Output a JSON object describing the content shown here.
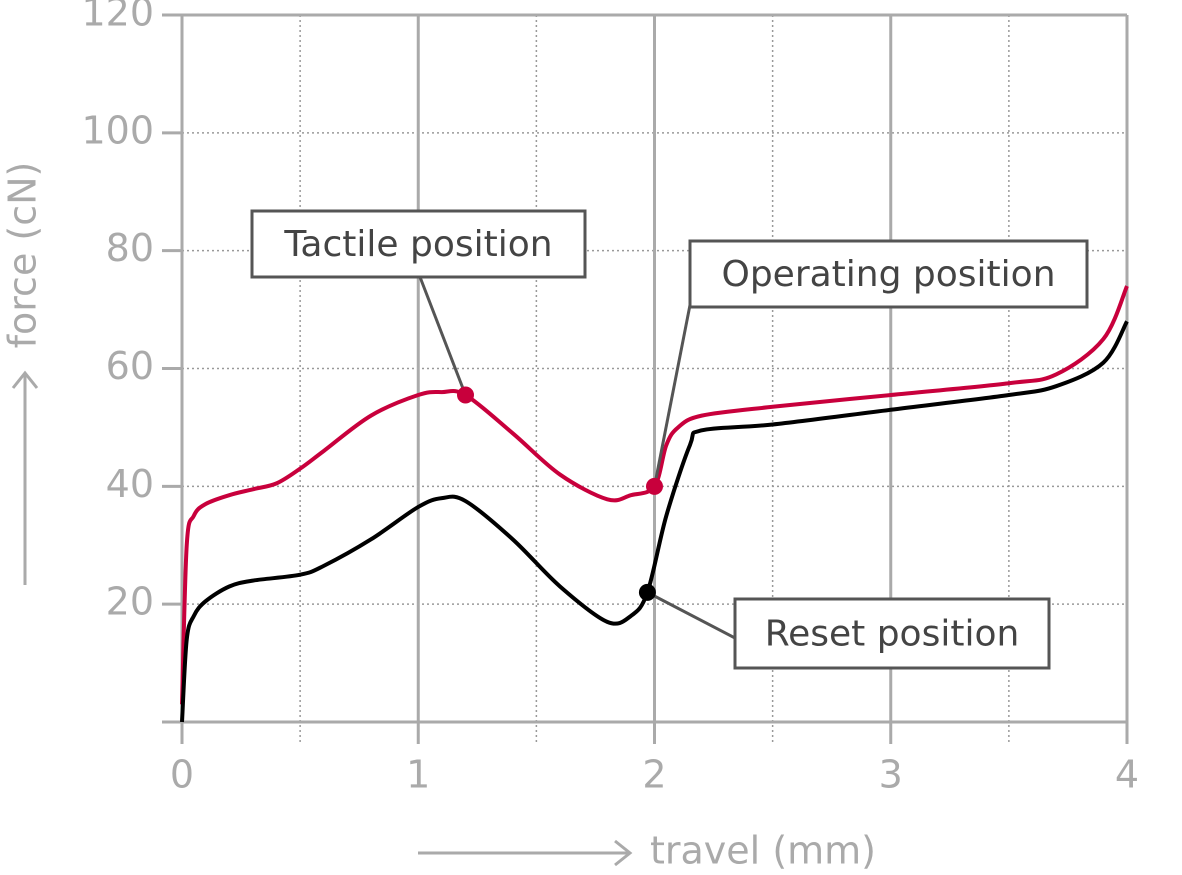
{
  "chart_data": {
    "type": "line",
    "ylabel": "force (cN)",
    "xlabel": "travel (mm)",
    "xlim": [
      0,
      4
    ],
    "ylim": [
      0,
      120
    ],
    "xticks": [
      0,
      1,
      2,
      3,
      4
    ],
    "xminor": [
      0.5,
      1.5,
      2.5,
      3.5
    ],
    "yticks": [
      20,
      40,
      60,
      80,
      100,
      120
    ],
    "grid": true,
    "series": [
      {
        "color": "#c8003c",
        "x": [
          0,
          0.02,
          0.05,
          0.1,
          0.2,
          0.3,
          0.4,
          0.5,
          0.6,
          0.8,
          1.0,
          1.1,
          1.2,
          1.4,
          1.6,
          1.8,
          1.9,
          2.0,
          2.05,
          2.1,
          2.2,
          2.5,
          3.0,
          3.5,
          3.7,
          3.9,
          4.0
        ],
        "values": [
          3,
          30,
          35,
          37,
          38.5,
          39.5,
          40.5,
          43,
          46,
          52,
          55.5,
          56,
          55.5,
          49,
          42,
          37.8,
          38.5,
          40,
          47,
          50,
          52,
          53.5,
          55.5,
          57.5,
          59,
          65,
          74
        ]
      },
      {
        "color": "#000000",
        "x": [
          0,
          0.02,
          0.05,
          0.1,
          0.2,
          0.3,
          0.5,
          0.6,
          0.8,
          1.0,
          1.1,
          1.2,
          1.4,
          1.6,
          1.8,
          1.9,
          1.97,
          2.05,
          2.15,
          2.2,
          2.5,
          3.0,
          3.5,
          3.7,
          3.9,
          4.0
        ],
        "values": [
          0,
          14,
          18,
          20.5,
          23,
          24,
          25,
          26.5,
          31,
          36.5,
          38,
          37.5,
          31,
          23,
          17,
          18,
          22,
          35,
          47,
          49.5,
          50.5,
          53,
          55.5,
          57,
          61,
          68
        ]
      }
    ],
    "annotations": [
      {
        "text": "Tactile position",
        "x": 1.2,
        "y": 55.5,
        "color": "#c8003c"
      },
      {
        "text": "Operating position",
        "x": 2.0,
        "y": 40,
        "color": "#c8003c"
      },
      {
        "text": "Reset position",
        "x": 1.97,
        "y": 22,
        "color": "#000000"
      }
    ]
  }
}
